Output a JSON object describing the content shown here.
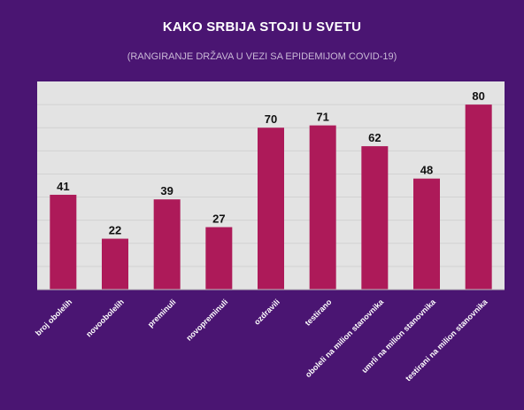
{
  "header": {
    "title": "KAKO SRBIJA STOJI U SVETU",
    "subtitle": "(RANGIRANJE DRŽAVA U VEZI SA EPIDEMIJOM COVID-19)"
  },
  "colors": {
    "background": "#4a1572",
    "plot_area": "#e3e3e3",
    "bar": "#ad1a59",
    "gridline": "#d2d2d2",
    "tick_label": "#ffffff",
    "value_label": "#111111"
  },
  "chart_data": {
    "type": "bar",
    "title": "KAKO SRBIJA STOJI U SVETU",
    "subtitle": "(RANGIRANJE DRŽAVA U VEZI SA EPIDEMIJOM COVID-19)",
    "categories": [
      "broj obolelih",
      "novoobolelih",
      "preminuli",
      "novopreminuli",
      "ozdravili",
      "testirano",
      "oboleli na milion stanovnika",
      "umrli na milion stanovnika",
      "testirani na milion stanovnika"
    ],
    "values": [
      41,
      22,
      39,
      27,
      70,
      71,
      62,
      48,
      80
    ],
    "ylim": [
      0,
      90
    ],
    "grid": true,
    "xlabel": "",
    "ylabel": ""
  }
}
